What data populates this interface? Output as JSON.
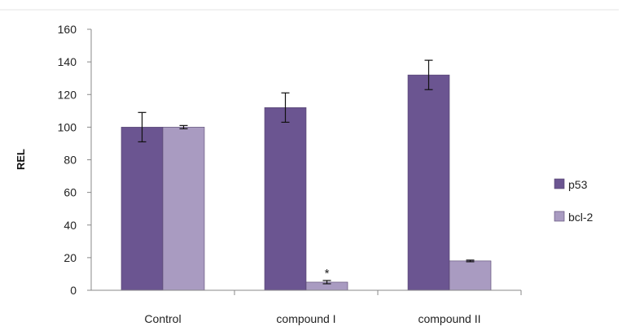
{
  "chart_data": {
    "type": "bar",
    "title": "",
    "xlabel": "",
    "ylabel": "REL",
    "ylim": [
      0,
      160
    ],
    "yticks": [
      0,
      20,
      40,
      60,
      80,
      100,
      120,
      140,
      160
    ],
    "categories": [
      "Control",
      "compound I",
      "compound II"
    ],
    "series": [
      {
        "name": "p53",
        "values": [
          100,
          112,
          132
        ],
        "errors": [
          9,
          9,
          9
        ],
        "color": "#6b5591"
      },
      {
        "name": "bcl-2",
        "values": [
          100,
          5,
          18
        ],
        "errors": [
          1,
          1,
          0.5
        ],
        "color": "#a99bc1"
      }
    ],
    "annotations": [
      {
        "text": "*",
        "category": "compound I",
        "series": "bcl-2"
      }
    ],
    "grid": false,
    "legend": "right"
  }
}
